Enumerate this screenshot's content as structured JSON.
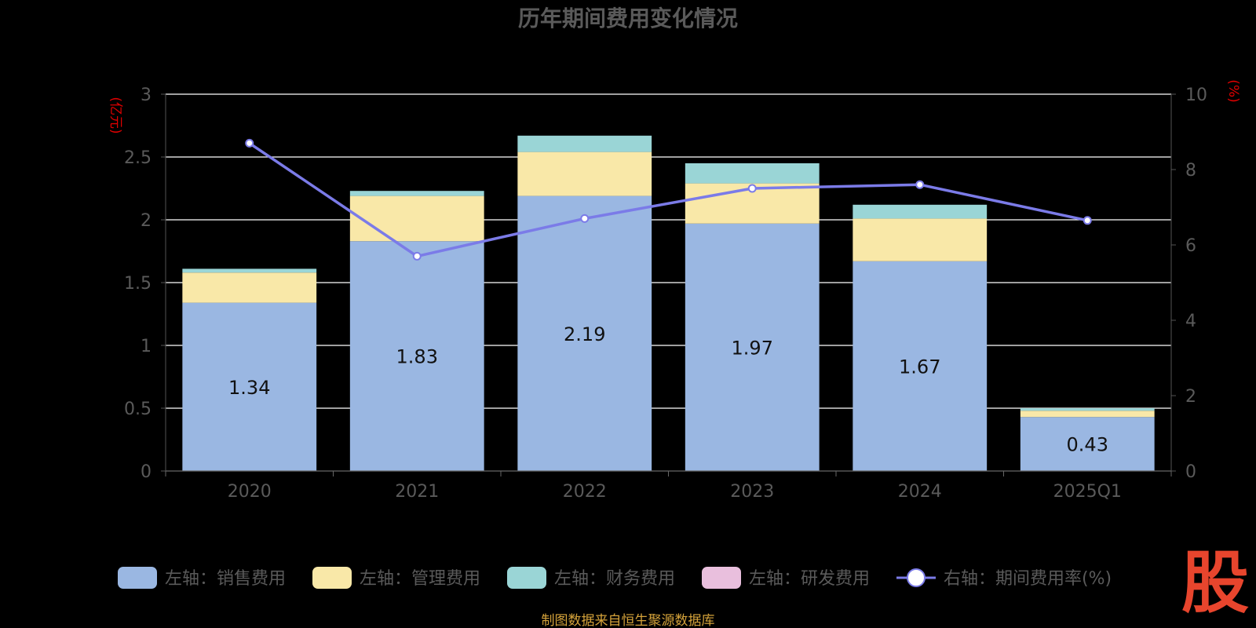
{
  "chart_data": {
    "type": "bar",
    "stacked": true,
    "title": "历年期间费用变化情况",
    "categories": [
      "2020",
      "2021",
      "2022",
      "2023",
      "2024",
      "2025Q1"
    ],
    "y_left": {
      "unit": "(亿元)",
      "lim": [
        0,
        3
      ],
      "ticks": [
        "0",
        "0.5",
        "1",
        "1.5",
        "2",
        "2.5",
        "3"
      ]
    },
    "y_right": {
      "unit": "(%)",
      "lim": [
        0,
        10
      ],
      "ticks": [
        "0",
        "2",
        "4",
        "6",
        "8",
        "10"
      ]
    },
    "grid": true,
    "legend_position": "bottom",
    "series": [
      {
        "name": "左轴：销售费用",
        "type": "bar",
        "axis": "left",
        "color": "#9ab7e2",
        "values": [
          1.34,
          1.83,
          2.19,
          1.97,
          1.67,
          0.43
        ],
        "labels": [
          "1.34",
          "1.83",
          "2.19",
          "1.97",
          "1.67",
          "0.43"
        ]
      },
      {
        "name": "左轴：管理费用",
        "type": "bar",
        "axis": "left",
        "color": "#f9e8a8",
        "values": [
          0.24,
          0.36,
          0.35,
          0.32,
          0.34,
          0.05
        ]
      },
      {
        "name": "左轴：财务费用",
        "type": "bar",
        "axis": "left",
        "color": "#9ad5d6",
        "values": [
          0.03,
          0.04,
          0.13,
          0.16,
          0.11,
          0.02
        ]
      },
      {
        "name": "左轴：研发费用",
        "type": "bar",
        "axis": "left",
        "color": "#e9bfdd",
        "values": [
          0,
          0,
          0,
          0,
          0,
          0
        ]
      },
      {
        "name": "右轴：期间费用率(%)",
        "type": "line",
        "axis": "right",
        "color": "#7b7be8",
        "values": [
          8.7,
          5.7,
          6.7,
          7.5,
          7.6,
          6.65
        ]
      }
    ]
  },
  "source_note": "制图数据来自恒生聚源数据库",
  "watermark": "股"
}
